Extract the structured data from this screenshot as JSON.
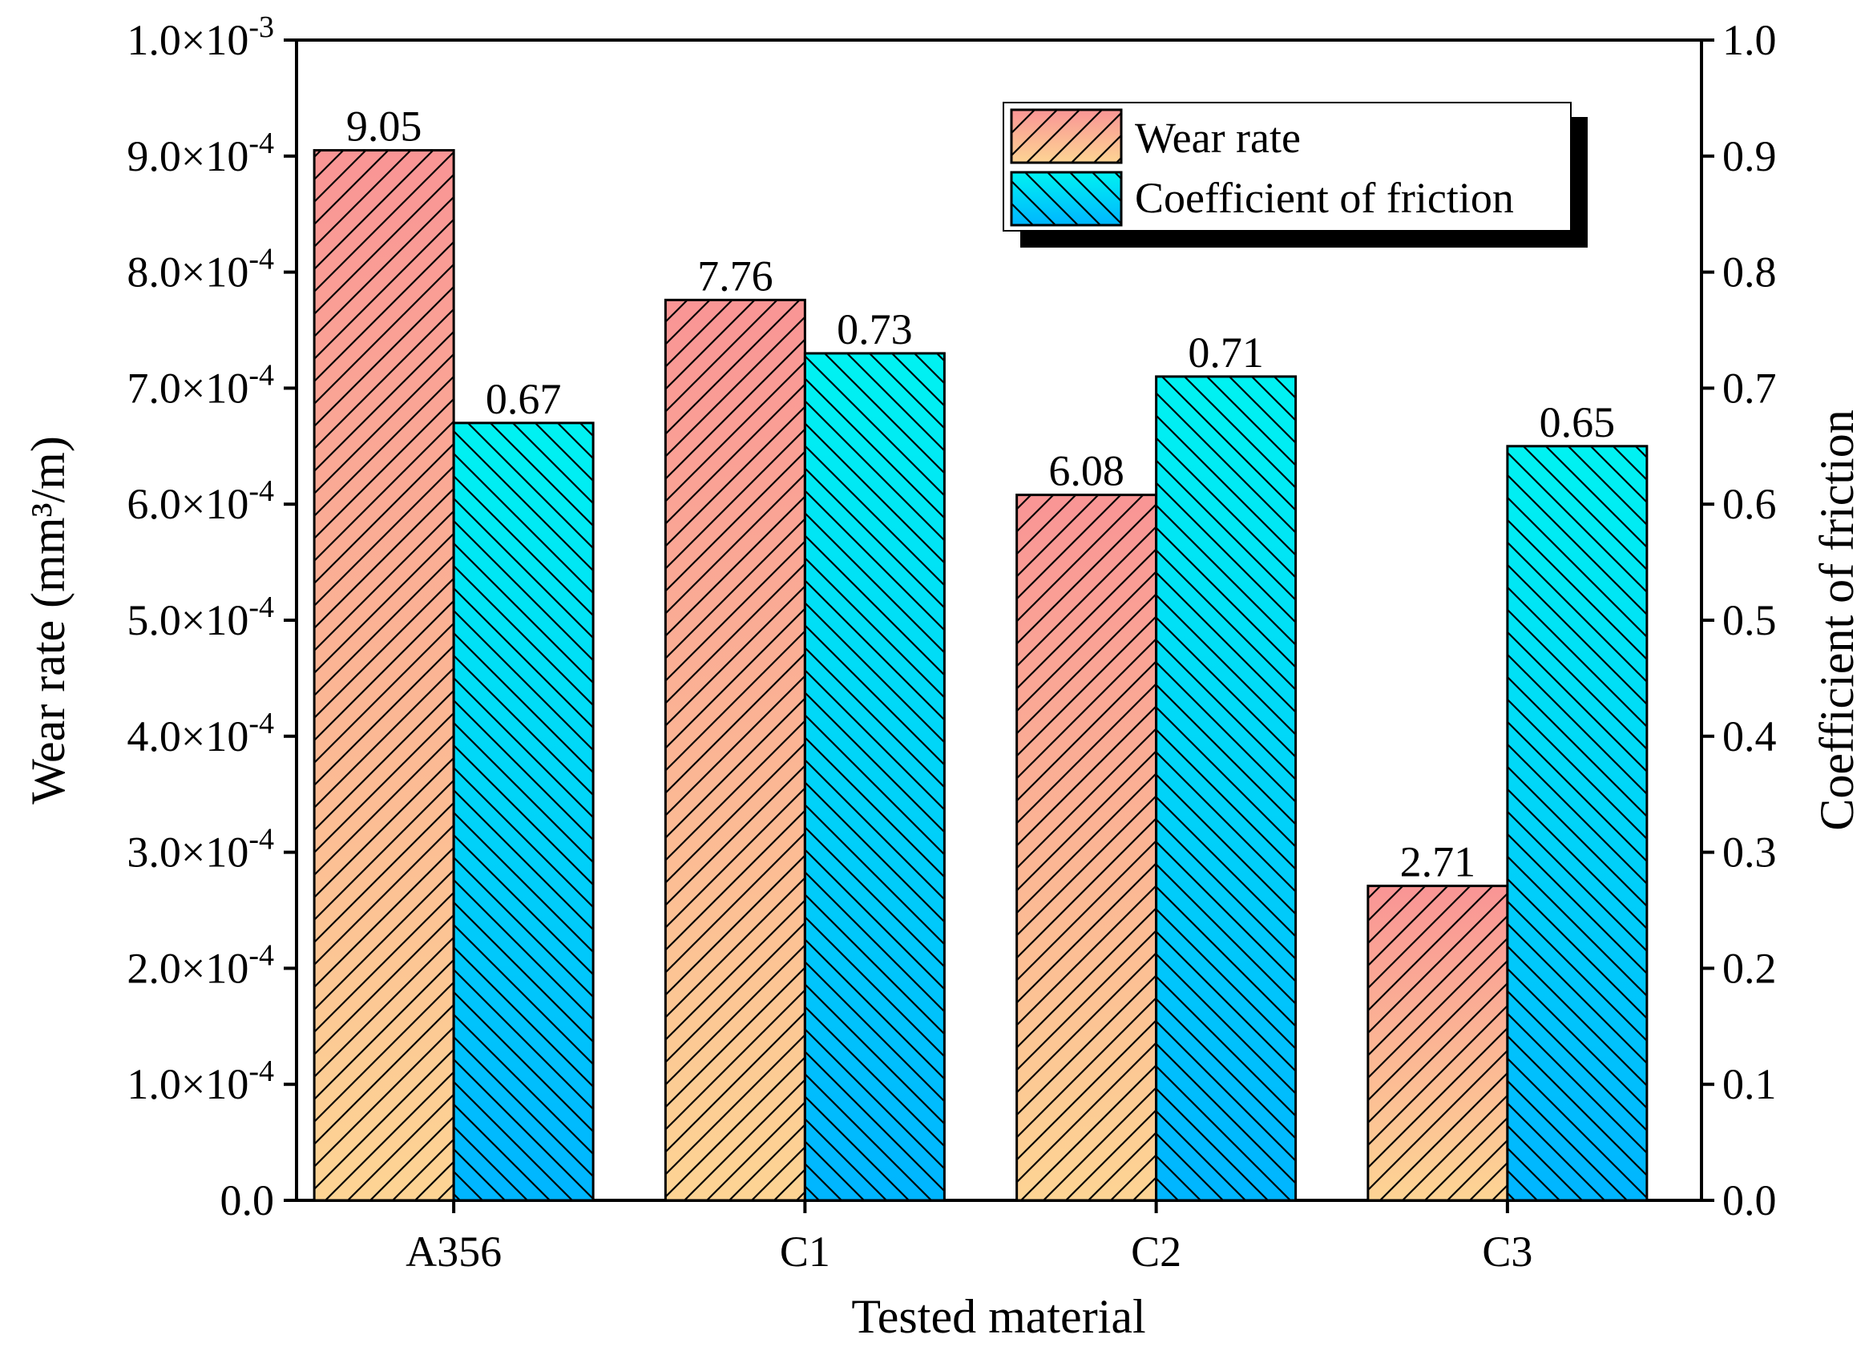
{
  "chart_data": {
    "type": "bar",
    "xlabel": "Tested material",
    "ylabel": "Wear rate (mm³/m)",
    "y2label": "Coefficient of friction",
    "categories": [
      "A356",
      "C1",
      "C2",
      "C3"
    ],
    "series": [
      {
        "name": "Wear rate",
        "axis": "left",
        "values": [
          0.000905,
          0.000776,
          0.000608,
          0.000271
        ],
        "labels": [
          "9.05",
          "7.76",
          "6.08",
          "2.71"
        ],
        "gradient_top": "#f99595",
        "gradient_bottom": "#fdd494",
        "hatch": "forward-diagonal"
      },
      {
        "name": "Coefficient of friction",
        "axis": "right",
        "values": [
          0.67,
          0.73,
          0.71,
          0.65
        ],
        "labels": [
          "0.67",
          "0.73",
          "0.71",
          "0.65"
        ],
        "gradient_top": "#00f2f2",
        "gradient_bottom": "#00b5ff",
        "hatch": "back-diagonal"
      }
    ],
    "ylim": [
      0,
      0.001
    ],
    "y2lim": [
      0,
      1.0
    ],
    "y_ticks": [
      {
        "value": 0.0,
        "mantissa": "0.0",
        "exp": ""
      },
      {
        "value": 0.0001,
        "mantissa": "1.0×10",
        "exp": "-4"
      },
      {
        "value": 0.0002,
        "mantissa": "2.0×10",
        "exp": "-4"
      },
      {
        "value": 0.0003,
        "mantissa": "3.0×10",
        "exp": "-4"
      },
      {
        "value": 0.0004,
        "mantissa": "4.0×10",
        "exp": "-4"
      },
      {
        "value": 0.0005,
        "mantissa": "5.0×10",
        "exp": "-4"
      },
      {
        "value": 0.0006,
        "mantissa": "6.0×10",
        "exp": "-4"
      },
      {
        "value": 0.0007,
        "mantissa": "7.0×10",
        "exp": "-4"
      },
      {
        "value": 0.0008,
        "mantissa": "8.0×10",
        "exp": "-4"
      },
      {
        "value": 0.0009,
        "mantissa": "9.0×10",
        "exp": "-4"
      },
      {
        "value": 0.001,
        "mantissa": "1.0×10",
        "exp": "-3"
      }
    ],
    "y2_ticks": [
      "0.0",
      "0.1",
      "0.2",
      "0.3",
      "0.4",
      "0.5",
      "0.6",
      "0.7",
      "0.8",
      "0.9",
      "1.0"
    ],
    "legend_position": "top-right",
    "grid": false
  }
}
